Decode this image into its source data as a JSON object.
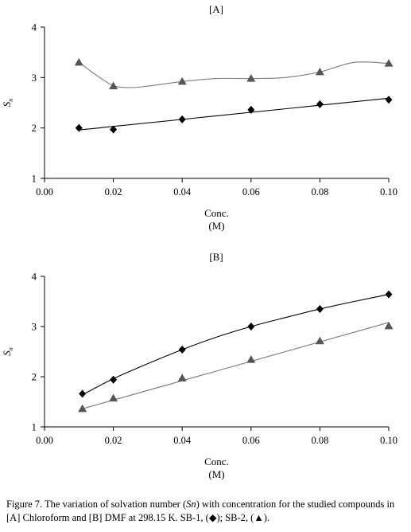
{
  "chart_data": [
    {
      "type": "scatter",
      "panel_label": "[A]",
      "xlabel": "Conc.",
      "xlabel_unit": "(M)",
      "ylabel_main": "S",
      "ylabel_sub": "n",
      "xlim": [
        0.0,
        0.1
      ],
      "ylim": [
        1,
        4
      ],
      "xticks": [
        "0.00",
        "0.02",
        "0.04",
        "0.06",
        "0.08",
        "0.10"
      ],
      "yticks": [
        "1",
        "2",
        "3",
        "4"
      ],
      "grid": false,
      "series": [
        {
          "marker": "diamond",
          "color": "#000000",
          "x": [
            0.01,
            0.02,
            0.04,
            0.06,
            0.08,
            0.1
          ],
          "y": [
            2.0,
            1.97,
            2.17,
            2.36,
            2.47,
            2.56
          ],
          "fit": "linear",
          "fit_curve": [
            [
              0.01,
              1.96
            ],
            [
              0.1,
              2.59
            ]
          ]
        },
        {
          "marker": "triangle",
          "color": "#555555",
          "x": [
            0.01,
            0.02,
            0.04,
            0.06,
            0.08,
            0.1
          ],
          "y": [
            3.3,
            2.83,
            2.92,
            2.98,
            3.11,
            3.28
          ],
          "fit": "smooth",
          "fit_curve": [
            [
              0.01,
              3.3
            ],
            [
              0.015,
              3.05
            ],
            [
              0.02,
              2.84
            ],
            [
              0.025,
              2.8
            ],
            [
              0.03,
              2.83
            ],
            [
              0.04,
              2.92
            ],
            [
              0.05,
              2.98
            ],
            [
              0.06,
              2.98
            ],
            [
              0.07,
              3.0
            ],
            [
              0.08,
              3.11
            ],
            [
              0.09,
              3.3
            ],
            [
              0.1,
              3.28
            ]
          ]
        }
      ]
    },
    {
      "type": "scatter",
      "panel_label": "[B]",
      "xlabel": "Conc.",
      "xlabel_unit": "(M)",
      "ylabel_main": "S",
      "ylabel_sub": "n",
      "xlim": [
        0.0,
        0.1
      ],
      "ylim": [
        1,
        4
      ],
      "xticks": [
        "0.00",
        "0.02",
        "0.04",
        "0.06",
        "0.08",
        "0.10"
      ],
      "yticks": [
        "1",
        "2",
        "3",
        "4"
      ],
      "grid": false,
      "series": [
        {
          "marker": "diamond",
          "color": "#000000",
          "x": [
            0.011,
            0.02,
            0.04,
            0.06,
            0.08,
            0.1
          ],
          "y": [
            1.66,
            1.94,
            2.54,
            3.0,
            3.35,
            3.64
          ],
          "fit": "smooth",
          "fit_curve": [
            [
              0.011,
              1.64
            ],
            [
              0.02,
              1.96
            ],
            [
              0.03,
              2.26
            ],
            [
              0.04,
              2.54
            ],
            [
              0.05,
              2.79
            ],
            [
              0.06,
              3.0
            ],
            [
              0.07,
              3.18
            ],
            [
              0.08,
              3.35
            ],
            [
              0.09,
              3.5
            ],
            [
              0.1,
              3.64
            ]
          ]
        },
        {
          "marker": "triangle",
          "color": "#555555",
          "x": [
            0.011,
            0.02,
            0.04,
            0.06,
            0.08,
            0.1
          ],
          "y": [
            1.36,
            1.57,
            1.97,
            2.34,
            2.71,
            3.01
          ],
          "fit": "linear",
          "fit_curve": [
            [
              0.011,
              1.36
            ],
            [
              0.1,
              3.08
            ]
          ]
        }
      ]
    }
  ],
  "caption": {
    "line1_prefix": "Figure 7. The variation of solvation number (",
    "line1_emph": "Sn",
    "line1_suffix": ") with concentration for the studied compounds in",
    "line2_prefix": "[A] Chloroform and [B] DMF at 298.15 K. SB-1, (",
    "line2_mid": "); SB-2, (",
    "line2_end": ")."
  },
  "symbols": {
    "diamond": "◆",
    "triangle": "▲"
  }
}
